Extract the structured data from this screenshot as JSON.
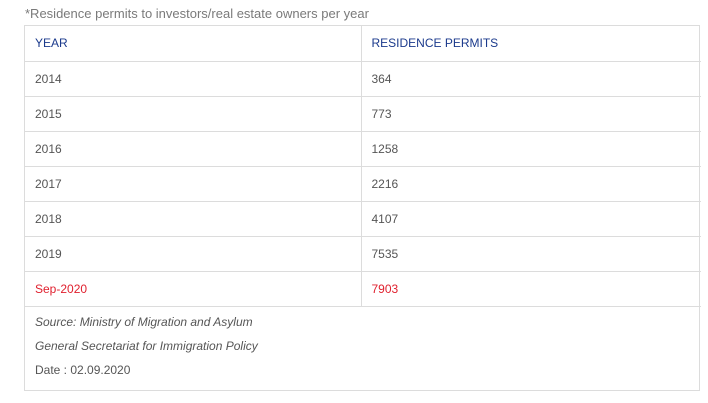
{
  "caption": "*Residence permits to investors/real estate owners per year",
  "table": {
    "headers": [
      "YEAR",
      "RESIDENCE PERMITS"
    ],
    "rows": [
      {
        "year": "2014",
        "permits": "364"
      },
      {
        "year": "2015",
        "permits": "773"
      },
      {
        "year": "2016",
        "permits": "1258"
      },
      {
        "year": "2017",
        "permits": "2216"
      },
      {
        "year": "2018",
        "permits": "4107"
      },
      {
        "year": "2019",
        "permits": "7535"
      },
      {
        "year": "Sep-2020",
        "permits": "7903"
      }
    ],
    "highlight_color": "#e0202e",
    "header_color": "#1b3a8c"
  },
  "source": {
    "line1": "Source: Ministry of Migration and Asylum",
    "line2": "General Secretariat for Immigration Policy",
    "date": "Date : 02.09.2020"
  }
}
